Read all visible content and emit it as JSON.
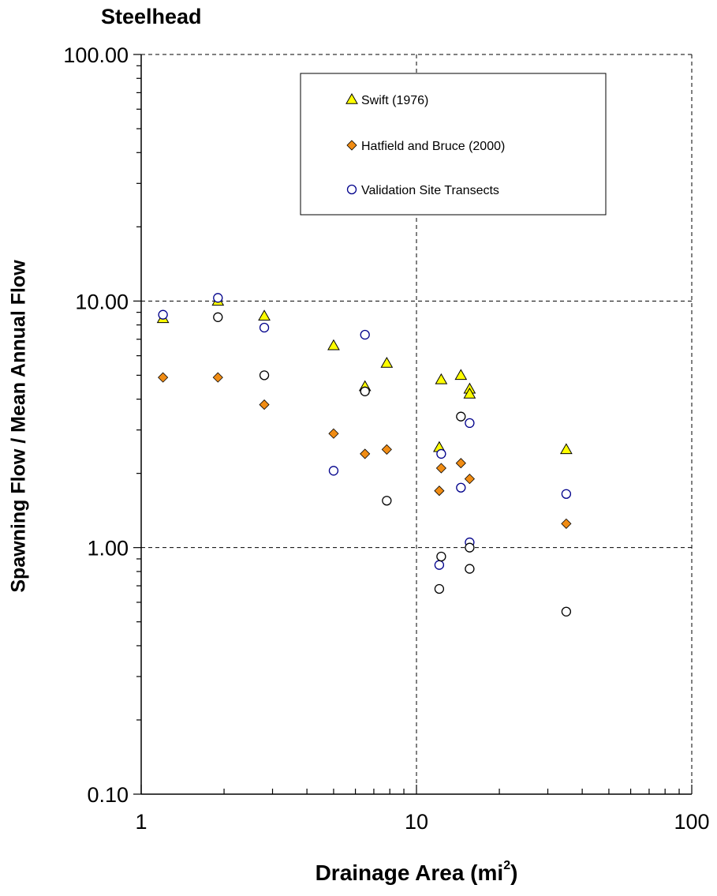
{
  "chart_data": {
    "type": "scatter",
    "title": "Steelhead",
    "xlabel_main": "Drainage Area (mi",
    "xlabel_sup": "2",
    "xlabel_end": ")",
    "ylabel": "Spawning Flow / Mean Annual Flow",
    "xscale": "log",
    "yscale": "log",
    "xlim": [
      1,
      100
    ],
    "ylim": [
      0.1,
      100
    ],
    "x_ticks": [
      "1",
      "10",
      "100"
    ],
    "y_ticks": [
      "100.00",
      "10.00",
      "1.00",
      "0.10"
    ],
    "grid": "dashed major gridlines",
    "legend_position": "upper-center",
    "series": [
      {
        "name": "Swift (1976)",
        "marker": "triangle",
        "color": "#ffff00",
        "points": [
          [
            1.2,
            8.5
          ],
          [
            1.9,
            10.0
          ],
          [
            2.8,
            8.7
          ],
          [
            5.0,
            6.6
          ],
          [
            6.5,
            4.5
          ],
          [
            7.8,
            5.6
          ],
          [
            12.3,
            4.8
          ],
          [
            14.5,
            5.0
          ],
          [
            15.6,
            4.4
          ],
          [
            15.6,
            4.2
          ],
          [
            12.1,
            2.55
          ],
          [
            35.0,
            2.5
          ]
        ]
      },
      {
        "name": "Hatfield and Bruce (2000)",
        "marker": "diamond",
        "color": "#f08c14",
        "points": [
          [
            1.2,
            4.9
          ],
          [
            1.9,
            4.9
          ],
          [
            2.8,
            3.8
          ],
          [
            5.0,
            2.9
          ],
          [
            6.5,
            2.4
          ],
          [
            7.8,
            2.5
          ],
          [
            12.3,
            2.1
          ],
          [
            14.5,
            2.2
          ],
          [
            15.6,
            1.9
          ],
          [
            12.1,
            1.7
          ],
          [
            35.0,
            1.25
          ]
        ]
      },
      {
        "name": "Validation Site Transects",
        "marker": "circle",
        "color": "#00008b",
        "points": [
          [
            1.2,
            8.8
          ],
          [
            1.9,
            10.3
          ],
          [
            2.8,
            7.8
          ],
          [
            5.0,
            2.05
          ],
          [
            6.5,
            7.3
          ],
          [
            12.3,
            2.4
          ],
          [
            14.5,
            1.75
          ],
          [
            15.6,
            3.2
          ],
          [
            15.6,
            1.05
          ],
          [
            12.1,
            0.85
          ],
          [
            35.0,
            1.65
          ]
        ]
      },
      {
        "marker": "circle",
        "color": "#000000",
        "points": [
          [
            1.9,
            8.6
          ],
          [
            2.8,
            5.0
          ],
          [
            6.5,
            4.3
          ],
          [
            7.8,
            1.55
          ],
          [
            14.5,
            3.4
          ],
          [
            12.3,
            0.92
          ],
          [
            15.6,
            1.0
          ],
          [
            15.6,
            0.82
          ],
          [
            12.1,
            0.68
          ],
          [
            35.0,
            0.55
          ]
        ]
      }
    ]
  }
}
